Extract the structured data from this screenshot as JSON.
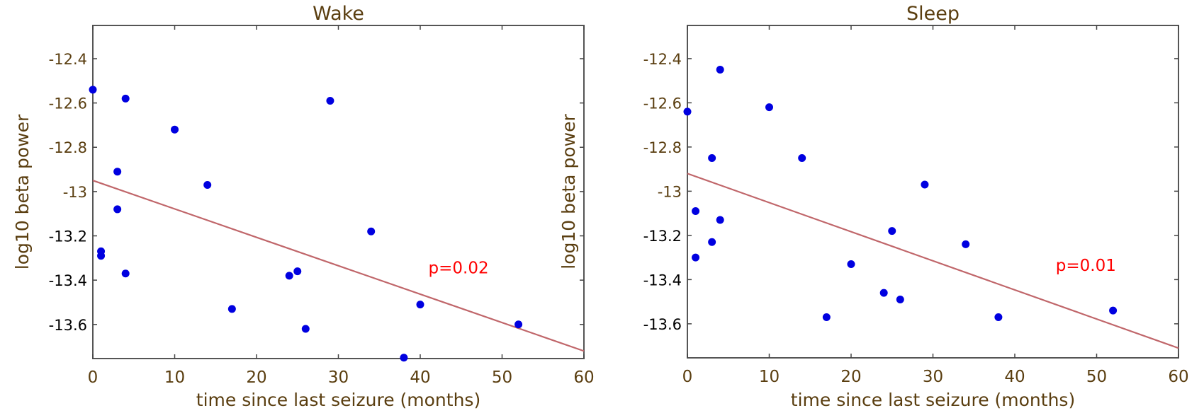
{
  "chart_data": [
    {
      "type": "scatter",
      "title": "Wake",
      "xlabel": "time since last seizure (months)",
      "ylabel": "log10 beta power",
      "xlim": [
        0,
        60
      ],
      "ylim": [
        -13.754,
        -12.25
      ],
      "xticks": [
        0,
        10,
        20,
        30,
        40,
        50,
        60
      ],
      "xtick_labels": [
        "0",
        "10",
        "20",
        "30",
        "40",
        "50",
        "60"
      ],
      "yticks": [
        -12.4,
        -12.6,
        -12.8,
        -13,
        -13.2,
        -13.4,
        -13.6
      ],
      "ytick_labels": [
        "-12.4",
        "-12.6",
        "-12.8",
        "-13",
        "-13.2",
        "-13.4",
        "-13.6"
      ],
      "ytick_label_colors": [
        "#5a3e10",
        "#5a3e10",
        "#5a3e10",
        "#5a3e10",
        "#000000",
        "#000000",
        "#000000"
      ],
      "grid": false,
      "points": [
        {
          "x": 0,
          "y": -12.54
        },
        {
          "x": 4,
          "y": -12.58
        },
        {
          "x": 10,
          "y": -12.72
        },
        {
          "x": 29,
          "y": -12.59
        },
        {
          "x": 3,
          "y": -12.91
        },
        {
          "x": 14,
          "y": -12.97
        },
        {
          "x": 3,
          "y": -13.08
        },
        {
          "x": 1,
          "y": -13.27
        },
        {
          "x": 1,
          "y": -13.29
        },
        {
          "x": 4,
          "y": -13.37
        },
        {
          "x": 34,
          "y": -13.18
        },
        {
          "x": 24,
          "y": -13.38
        },
        {
          "x": 25,
          "y": -13.36
        },
        {
          "x": 17,
          "y": -13.53
        },
        {
          "x": 26,
          "y": -13.62
        },
        {
          "x": 40,
          "y": -13.51
        },
        {
          "x": 52,
          "y": -13.6
        },
        {
          "x": 38,
          "y": -13.75
        }
      ],
      "fit_line": {
        "x": [
          0,
          60
        ],
        "y": [
          -12.95,
          -13.72
        ]
      },
      "annotation": {
        "text": "p=0.02",
        "x": 41,
        "y": -13.37,
        "color": "#ff0000"
      },
      "marker_color": "#0000e0",
      "line_color": "#c0666a"
    },
    {
      "type": "scatter",
      "title": "Sleep",
      "xlabel": "time since last seizure (months)",
      "ylabel": "log10 beta power",
      "xlim": [
        0,
        60
      ],
      "ylim": [
        -13.754,
        -12.25
      ],
      "xticks": [
        0,
        10,
        20,
        30,
        40,
        50,
        60
      ],
      "xtick_labels": [
        "0",
        "10",
        "20",
        "30",
        "40",
        "50",
        "60"
      ],
      "yticks": [
        -12.4,
        -12.6,
        -12.8,
        -13,
        -13.2,
        -13.4,
        -13.6
      ],
      "ytick_labels": [
        "-12.4",
        "-12.6",
        "-12.8",
        "-13",
        "-13.2",
        "-13.4",
        "-13.6"
      ],
      "ytick_label_colors": [
        "#5a3e10",
        "#5a3e10",
        "#5a3e10",
        "#5a3e10",
        "#000000",
        "#000000",
        "#000000"
      ],
      "grid": false,
      "points": [
        {
          "x": 4,
          "y": -12.45
        },
        {
          "x": 0,
          "y": -12.64
        },
        {
          "x": 10,
          "y": -12.62
        },
        {
          "x": 3,
          "y": -12.85
        },
        {
          "x": 14,
          "y": -12.85
        },
        {
          "x": 29,
          "y": -12.97
        },
        {
          "x": 1,
          "y": -13.09
        },
        {
          "x": 4,
          "y": -13.13
        },
        {
          "x": 3,
          "y": -13.23
        },
        {
          "x": 1,
          "y": -13.3
        },
        {
          "x": 25,
          "y": -13.18
        },
        {
          "x": 34,
          "y": -13.24
        },
        {
          "x": 20,
          "y": -13.33
        },
        {
          "x": 24,
          "y": -13.46
        },
        {
          "x": 26,
          "y": -13.49
        },
        {
          "x": 17,
          "y": -13.57
        },
        {
          "x": 38,
          "y": -13.57
        },
        {
          "x": 52,
          "y": -13.54
        }
      ],
      "fit_line": {
        "x": [
          0,
          60
        ],
        "y": [
          -12.92,
          -13.71
        ]
      },
      "annotation": {
        "text": "p=0.01",
        "x": 45,
        "y": -13.36,
        "color": "#ff0000"
      },
      "marker_color": "#0000e0",
      "line_color": "#c0666a"
    }
  ]
}
